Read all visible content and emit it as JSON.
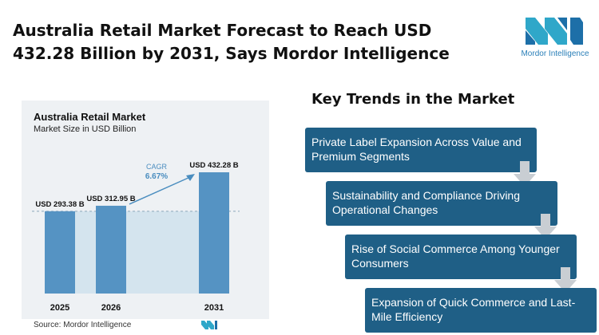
{
  "headline": "Australia Retail Market Forecast to Reach USD 432.28 Billion by 2031, Says Mordor Intelligence",
  "logo": {
    "text": "Mordor Intelligence",
    "icon": "mordor-intelligence-logo"
  },
  "chart": {
    "title": "Australia Retail Market",
    "subtitle": "Market Size in USD Billion",
    "source": "Source: Mordor Intelligence"
  },
  "chart_data": {
    "type": "bar",
    "title": "Australia Retail Market",
    "ylabel": "Market Size in USD Billion",
    "categories": [
      "2025",
      "2026",
      "2031"
    ],
    "values": [
      293.38,
      312.95,
      432.28
    ],
    "data_labels": [
      "USD 293.38 B",
      "USD 312.95 B",
      "USD 432.28 B"
    ],
    "annotation": {
      "label": "CAGR",
      "value": "6.67%"
    },
    "colors": {
      "bar": "#5593c3",
      "highlight": "#bfd8ea",
      "arrow": "#4a8dbf",
      "background": "#eef1f4"
    }
  },
  "trends": {
    "title": "Key Trends in the Market",
    "items": [
      "Private Label Expansion Across Value and Premium Segments",
      "Sustainability and Compliance Driving Operational Changes",
      "Rise of Social Commerce Among Younger Consumers",
      "Expansion of Quick Commerce and Last-Mile Efficiency"
    ],
    "box_color": "#1f5f86",
    "arrow_color": "#c9ced3"
  }
}
